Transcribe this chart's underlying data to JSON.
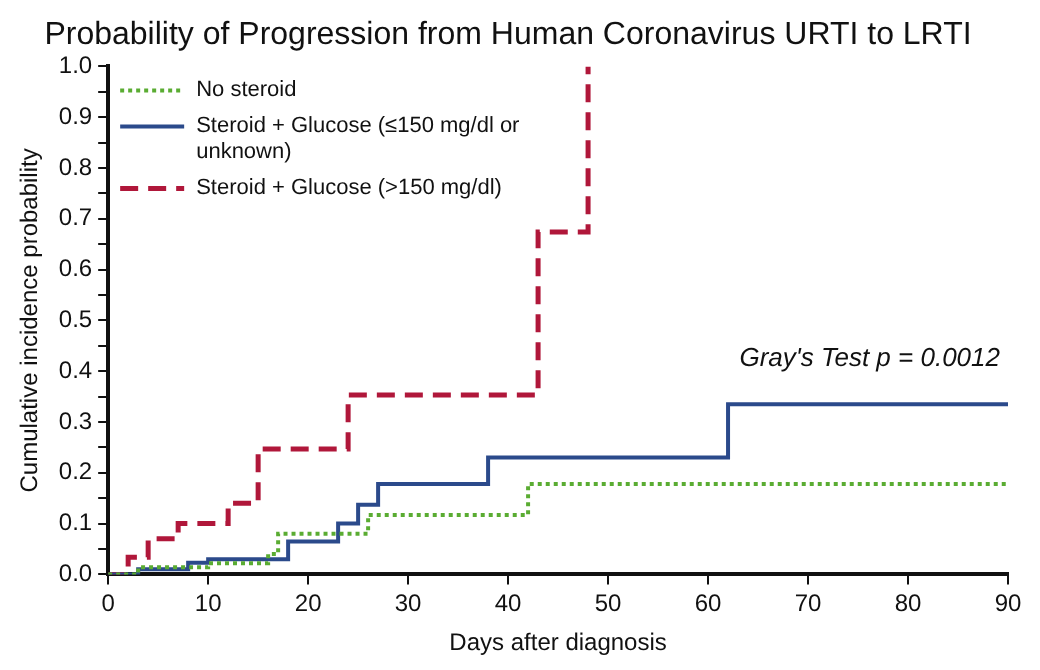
{
  "chart_data": {
    "type": "step",
    "title": "Probability of Progression from Human Coronavirus URTI to LRTI",
    "xlabel": "Days after diagnosis",
    "ylabel": "Cumulative incidence probability",
    "series": [
      {
        "name": "No steroid",
        "color": "#5aac32",
        "line_style": "dotted",
        "x": [
          0,
          3,
          10,
          16,
          17,
          26,
          42,
          90
        ],
        "values": [
          0,
          0.014,
          0.022,
          0.04,
          0.08,
          0.117,
          0.178,
          0.178
        ]
      },
      {
        "name": "Steroid + Glucose (≤150 mg/dl or unknown)",
        "color": "#2b4a8b",
        "line_style": "solid",
        "x": [
          0,
          3,
          8,
          10,
          18,
          23,
          25,
          27,
          38,
          62,
          90
        ],
        "values": [
          0,
          0.01,
          0.023,
          0.03,
          0.065,
          0.1,
          0.137,
          0.178,
          0.23,
          0.335,
          0.335
        ]
      },
      {
        "name": "Steroid + Glucose (>150 mg/dl)",
        "color": "#b0173a",
        "line_style": "dashed",
        "x": [
          0,
          2,
          4,
          7,
          12,
          15,
          24,
          43,
          48
        ],
        "values": [
          0,
          0.034,
          0.07,
          0.1,
          0.14,
          0.247,
          0.353,
          0.674,
          1.0
        ]
      }
    ],
    "xlim": [
      0,
      90
    ],
    "xticks": [
      0,
      10,
      20,
      30,
      40,
      50,
      60,
      70,
      80,
      90
    ],
    "ylim": [
      0,
      1.0
    ],
    "yticks": [
      {
        "value": 0,
        "label": "0.0"
      },
      {
        "value": 0.05,
        "label": null
      },
      {
        "value": 0.1,
        "label": "0.1"
      },
      {
        "value": 0.15,
        "label": null
      },
      {
        "value": 0.2,
        "label": "0.2"
      },
      {
        "value": 0.25,
        "label": null
      },
      {
        "value": 0.3,
        "label": "0.3"
      },
      {
        "value": 0.35,
        "label": null
      },
      {
        "value": 0.4,
        "label": "0.4"
      },
      {
        "value": 0.45,
        "label": null
      },
      {
        "value": 0.5,
        "label": "0.5"
      },
      {
        "value": 0.55,
        "label": null
      },
      {
        "value": 0.6,
        "label": "0.6"
      },
      {
        "value": 0.65,
        "label": null
      },
      {
        "value": 0.7,
        "label": "0.7"
      },
      {
        "value": 0.75,
        "label": null
      },
      {
        "value": 0.8,
        "label": "0.8"
      },
      {
        "value": 0.85,
        "label": null
      },
      {
        "value": 0.9,
        "label": "0.9"
      },
      {
        "value": 0.95,
        "label": null
      },
      {
        "value": 1.0,
        "label": "1.0"
      }
    ],
    "annotations": [
      "Gray's Test p = 0.0012"
    ],
    "grid": false,
    "legend": "top left"
  }
}
